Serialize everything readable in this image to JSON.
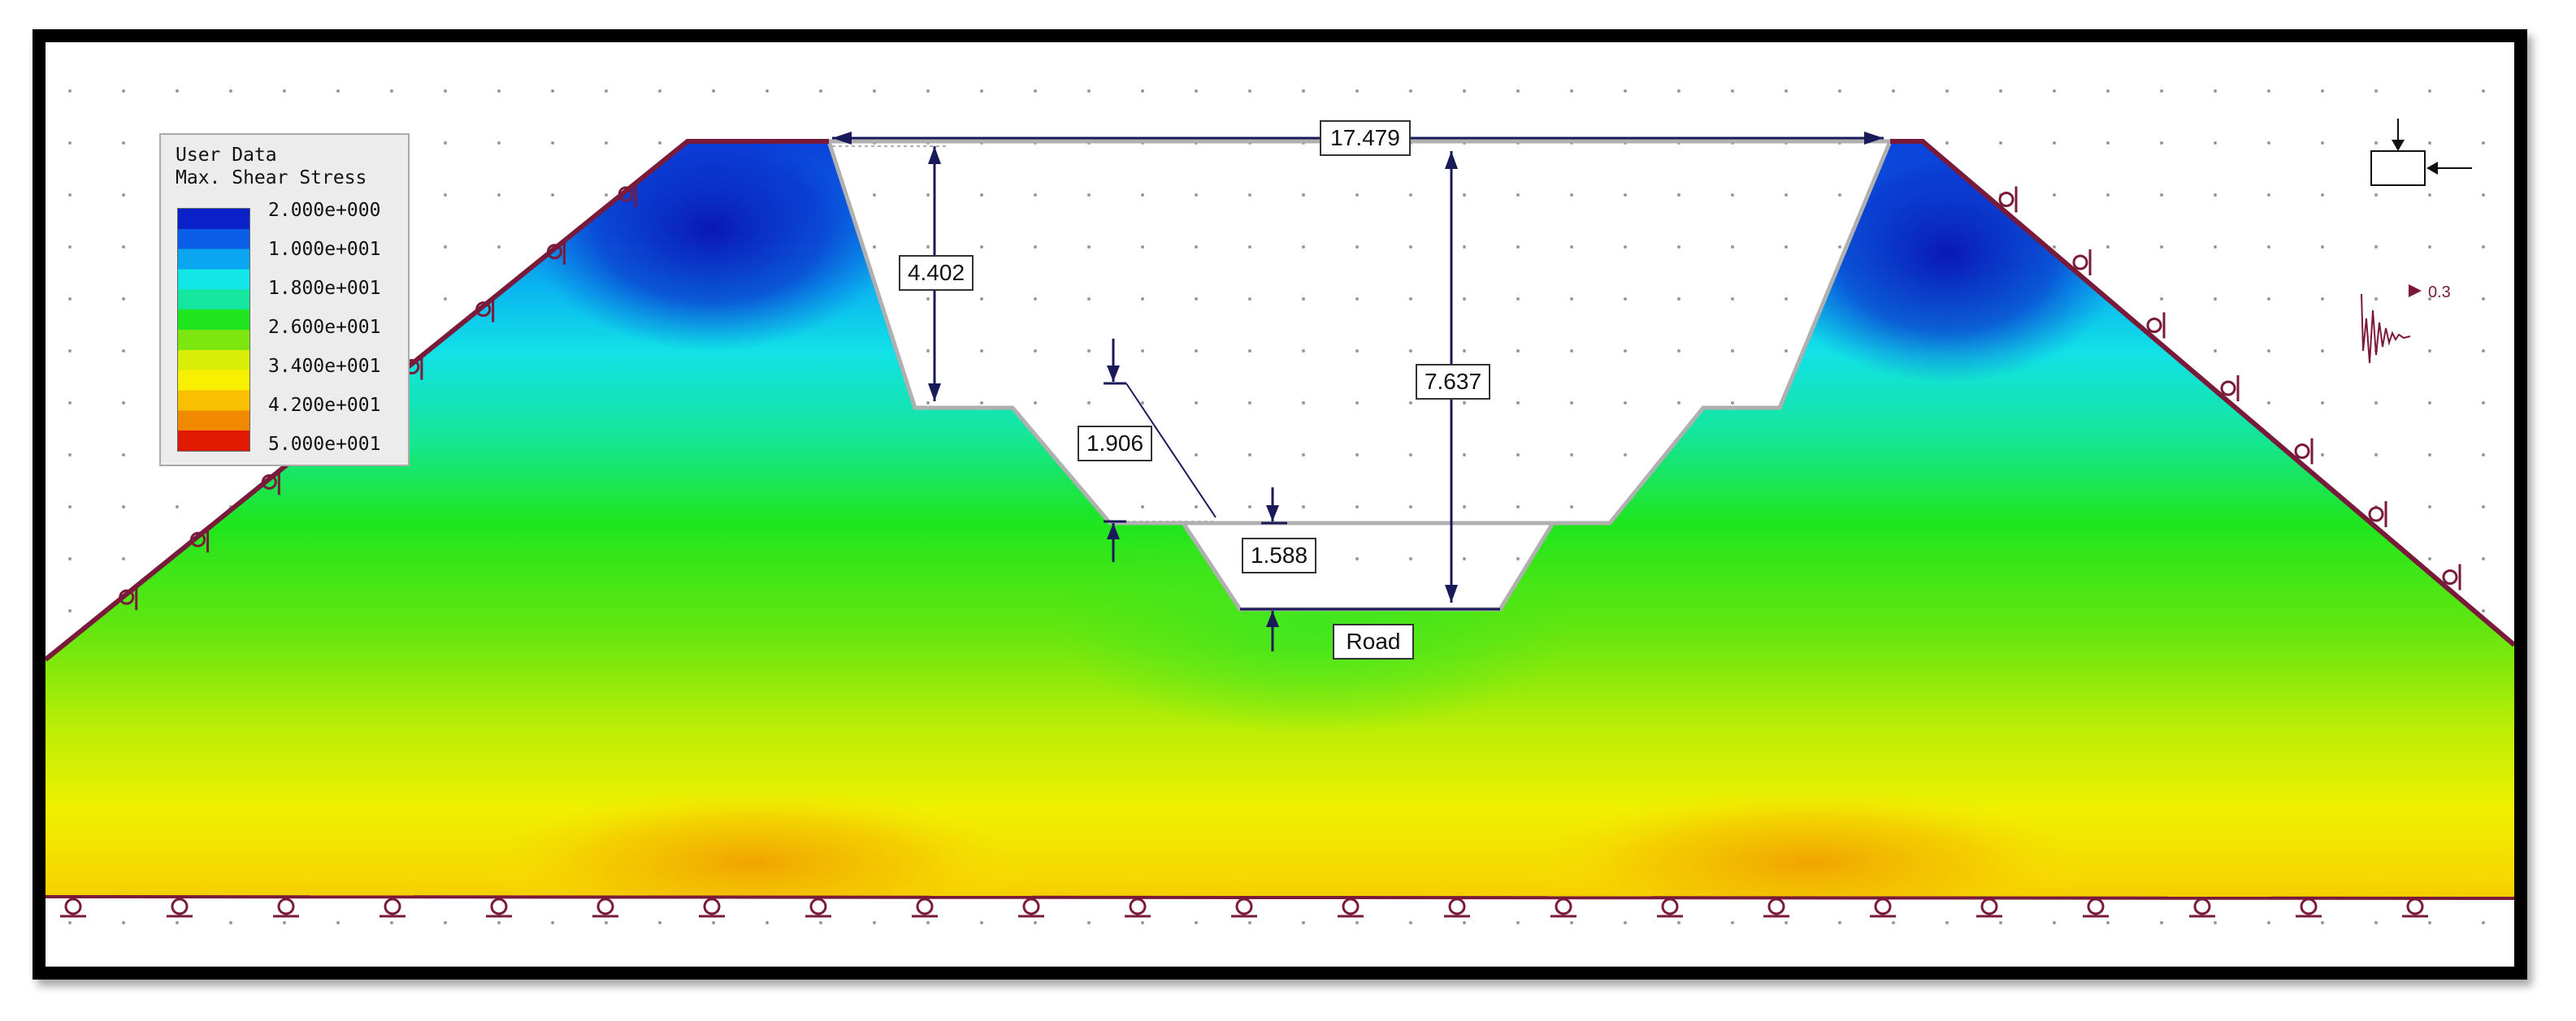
{
  "legend": {
    "title_line1": "User Data",
    "title_line2": "Max. Shear Stress",
    "labels": [
      "2.000e+000",
      "1.000e+001",
      "1.800e+001",
      "2.600e+001",
      "3.400e+001",
      "4.200e+001",
      "5.000e+001"
    ],
    "colors": [
      "#0a20c8",
      "#0a5ee8",
      "#0aa6f0",
      "#12e6e6",
      "#14e6a0",
      "#20e620",
      "#7ce60e",
      "#d8ee06",
      "#f8f000",
      "#f8c000",
      "#f08800",
      "#e01a00"
    ]
  },
  "dimensions": {
    "top_width": "17.479",
    "left_depth": "4.402",
    "total_depth": "7.637",
    "bench_height": "1.906",
    "road_depth": "1.588"
  },
  "labels": {
    "road": "Road",
    "load_value": "0.3"
  },
  "colors": {
    "boundary": "#7a1a3a",
    "grid_dot": "#9a9a9a",
    "dim_line": "#1a1a5a",
    "excavation_edge": "#b0b0b0"
  }
}
